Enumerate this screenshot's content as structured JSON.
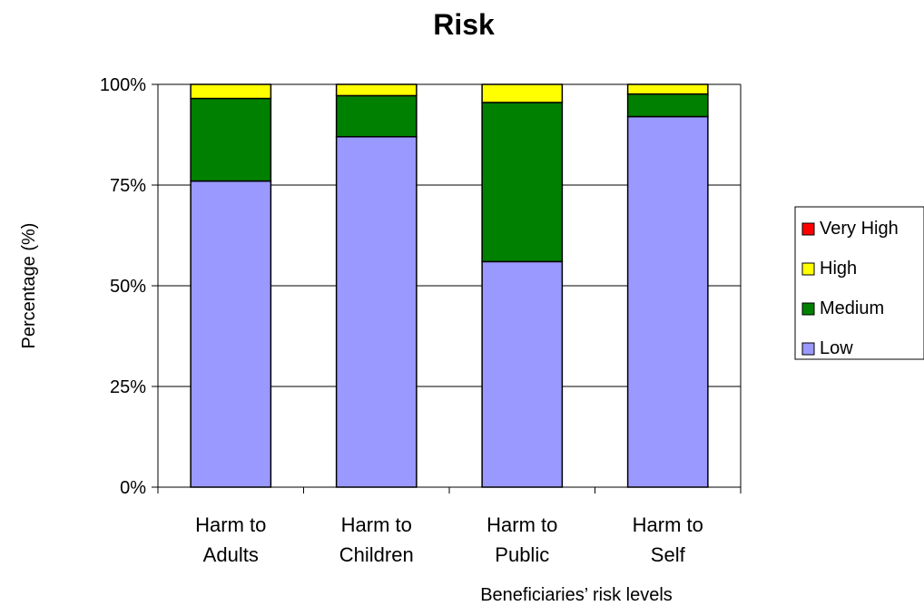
{
  "chart_data": {
    "type": "bar",
    "stacked": true,
    "normalized": true,
    "title": "Risk",
    "xlabel": "Beneficiaries’ risk levels",
    "ylabel": "Percentage (%)",
    "ylim": [
      0,
      100
    ],
    "yticks": [
      "0%",
      "25%",
      "50%",
      "75%",
      "100%"
    ],
    "categories": [
      [
        "Harm to",
        "Adults"
      ],
      [
        "Harm to",
        "Children"
      ],
      [
        "Harm to",
        "Public"
      ],
      [
        "Harm to",
        "Self"
      ]
    ],
    "series": [
      {
        "name": "Low",
        "color": "#9999ff",
        "values": [
          76,
          87,
          56,
          92
        ]
      },
      {
        "name": "Medium",
        "color": "#008000",
        "values": [
          20.5,
          10.2,
          39.5,
          5.6
        ]
      },
      {
        "name": "High",
        "color": "#ffff00",
        "values": [
          3.5,
          2.8,
          4.5,
          2.4
        ]
      },
      {
        "name": "Very High",
        "color": "#ff0000",
        "values": [
          0,
          0,
          0,
          0
        ]
      }
    ],
    "legend": {
      "position": "right",
      "order": [
        "Very High",
        "High",
        "Medium",
        "Low"
      ]
    },
    "grid": true
  }
}
